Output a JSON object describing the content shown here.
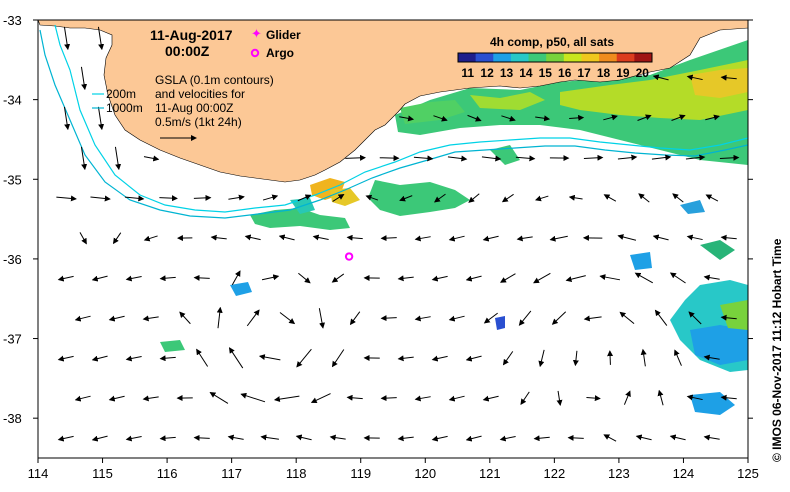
{
  "header": {
    "date": "11-Aug-2017",
    "time": "00:00Z"
  },
  "legend": {
    "glider_label": "Glider",
    "argo_label": "Argo",
    "glider_color": "#ff00ff",
    "argo_color": "#ff00ff"
  },
  "depth_labels": {
    "d200": "200m",
    "d1000": "1000m"
  },
  "gsla_note": {
    "line1": "GSLA (0.1m contours)",
    "line2": "and velocities for",
    "line3": "11-Aug 00:00Z",
    "line4": "0.5m/s (1kt 24h)"
  },
  "colorbar": {
    "title": "4h comp, p50, all sats",
    "labels": [
      "11",
      "12",
      "13",
      "14",
      "15",
      "16",
      "17",
      "18",
      "19",
      "20"
    ],
    "colors": [
      "#1e1e8c",
      "#2a4fd0",
      "#1ea0e6",
      "#28c8c8",
      "#3cc878",
      "#78d23c",
      "#c8e61e",
      "#f0c81e",
      "#f08c1e",
      "#dc3c1e",
      "#a01414"
    ]
  },
  "side_text": "©  IMOS 06-Nov-2017 11:12 Hobart Time",
  "colors": {
    "land": "#fcc896",
    "isobath_200": "#00d2e6",
    "isobath_1000": "#00b4d2",
    "arrow": "#000000"
  },
  "axes": {
    "x_ticks": [
      "114",
      "115",
      "116",
      "117",
      "118",
      "119",
      "120",
      "121",
      "122",
      "123",
      "124",
      "125"
    ],
    "y_ticks": [
      "-33",
      "-34",
      "-35",
      "-36",
      "-37",
      "-38"
    ],
    "xlim": [
      114,
      125
    ],
    "ylim": [
      -38.5,
      -33
    ]
  },
  "argo_float": {
    "lon": 118.82,
    "lat": -35.97
  }
}
